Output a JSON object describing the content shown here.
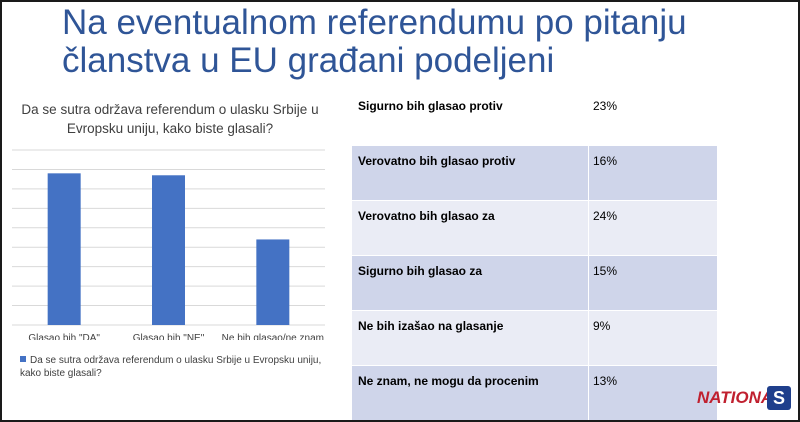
{
  "slide": {
    "title": "Na eventualnom referendumu po pitanju članstva u EU građani podeljeni"
  },
  "chart_data": {
    "type": "bar",
    "title": "Da se sutra održava referendum o ulasku Srbije u Evropsku uniju, kako biste glasali?",
    "categories": [
      "Glasao bih \"DA\"",
      "Glasao bih \"NE\"",
      "Ne bih glasao/ne znam"
    ],
    "series": [
      {
        "name": "Da se sutra održava referendum o ulasku Srbije u Evropsku uniju, kako biste glasali?",
        "values": [
          39,
          38.5,
          22
        ]
      }
    ],
    "ylim": [
      0,
      45
    ],
    "grid": true,
    "legend_position": "bottom-left",
    "colors": {
      "bar": "#4472c4",
      "grid": "#d9d9d9"
    }
  },
  "table": {
    "rows": [
      {
        "label": "Sigurno bih glasao protiv",
        "value": "23%"
      },
      {
        "label": "Verovatno bih glasao protiv",
        "value": "16%"
      },
      {
        "label": "Verovatno bih glasao za",
        "value": "24%"
      },
      {
        "label": "Sigurno bih glasao za",
        "value": "15%"
      },
      {
        "label": "Ne bih izašao na glasanje",
        "value": "9%"
      },
      {
        "label": "Ne znam, ne mogu da procenim",
        "value": "13%"
      }
    ]
  },
  "logo": {
    "text": "NATIONAL",
    "mark": "S",
    "brand_color": "#c0202f",
    "mark_color": "#1f3f8c"
  }
}
